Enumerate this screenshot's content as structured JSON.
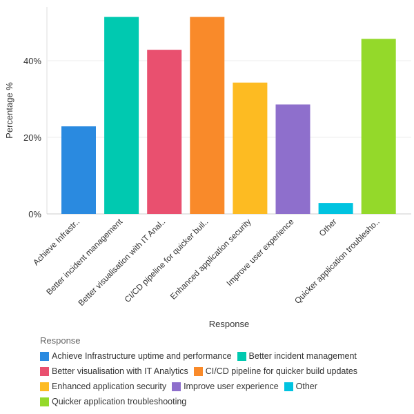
{
  "chart_data": {
    "type": "bar",
    "xlabel": "Response",
    "ylabel": "Percentage %",
    "ylim": [
      0,
      54
    ],
    "yticks": [
      0,
      20,
      40
    ],
    "ytick_labels": [
      "0%",
      "20%",
      "40%"
    ],
    "grid": true,
    "legend_title": "Response",
    "legend_position": "bottom",
    "categories": [
      "Achieve Infrastructure uptime and performance",
      "Better incident management",
      "Better visualisation with IT Analytics",
      "CI/CD pipeline for quicker build updates",
      "Enhanced application security",
      "Improve user experience",
      "Other",
      "Quicker application troubleshooting"
    ],
    "tick_labels": [
      "Achieve Infrastr..",
      "Better incident management",
      "Better visualisation with IT Anal..",
      "CI/CD pipeline for quicker buil..",
      "Enhanced application security",
      "Improve user experience",
      "Other",
      "Quicker application troublesho.."
    ],
    "values": [
      22.86,
      51.43,
      42.86,
      51.43,
      34.29,
      28.57,
      2.86,
      45.71
    ],
    "colors": [
      "#2a8ae0",
      "#00c9b0",
      "#e9506f",
      "#f98a2a",
      "#fdbb22",
      "#8e6fcc",
      "#00c3e0",
      "#94d92a"
    ]
  }
}
